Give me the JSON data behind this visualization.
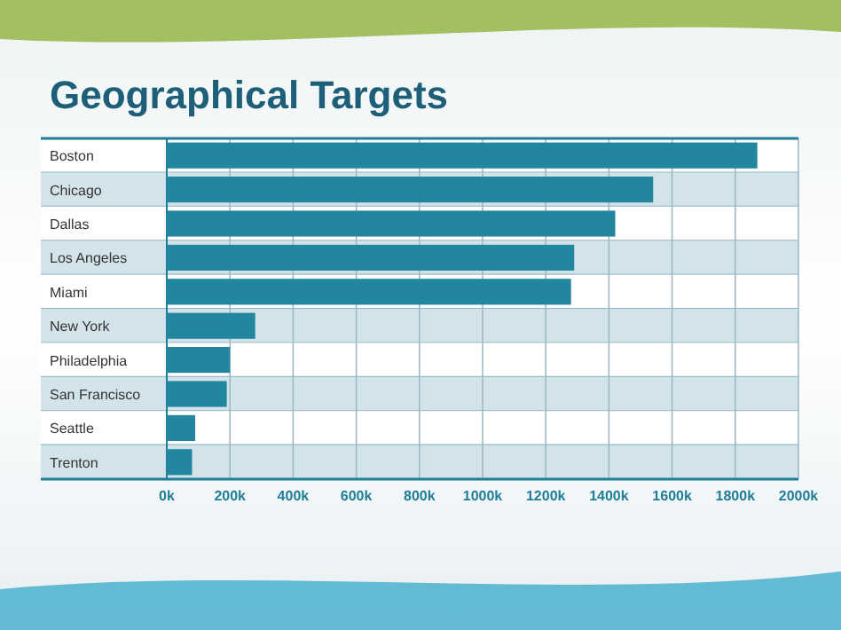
{
  "chart_data": {
    "type": "bar",
    "orientation": "horizontal",
    "title": "Geographical Targets",
    "categories": [
      "Boston",
      "Chicago",
      "Dallas",
      "Los Angeles",
      "Miami",
      "New York",
      "Philadelphia",
      "San Francisco",
      "Seattle",
      "Trenton"
    ],
    "values": [
      1870,
      1540,
      1420,
      1290,
      1280,
      280,
      200,
      190,
      90,
      80
    ],
    "color": "#23869f",
    "xlim": [
      0,
      2000
    ],
    "xticks": [
      {
        "value": 0,
        "label": "0k"
      },
      {
        "value": 200,
        "label": "200k"
      },
      {
        "value": 400,
        "label": "400k"
      },
      {
        "value": 600,
        "label": "600k"
      },
      {
        "value": 800,
        "label": "800k"
      },
      {
        "value": 1000,
        "label": "1000k"
      },
      {
        "value": 1200,
        "label": "1200k"
      },
      {
        "value": 1400,
        "label": "1400k"
      },
      {
        "value": 1600,
        "label": "1600k"
      },
      {
        "value": 1800,
        "label": "1800k"
      },
      {
        "value": 2000,
        "label": "2000k"
      }
    ],
    "grid": "x"
  }
}
